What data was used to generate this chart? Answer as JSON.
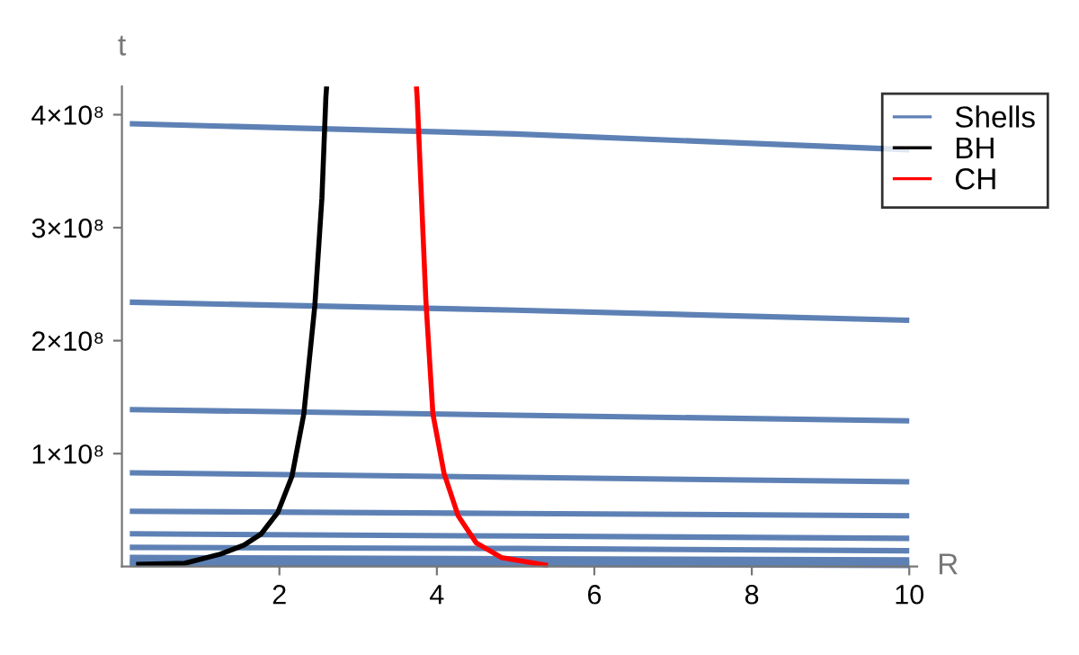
{
  "chart_data": {
    "type": "line",
    "xlabel": "R",
    "ylabel": "t",
    "xlim": [
      0,
      10.1
    ],
    "ylim": [
      0,
      425000000
    ],
    "xticks": [
      2,
      4,
      6,
      8,
      10
    ],
    "yticks": [
      {
        "value": 100000000,
        "label": "1×10⁸"
      },
      {
        "value": 200000000,
        "label": "2×10⁸"
      },
      {
        "value": 300000000,
        "label": "3×10⁸"
      },
      {
        "value": 400000000,
        "label": "4×10⁸"
      }
    ],
    "grid": false,
    "legend": "top right",
    "marker": "none",
    "line_style": "solid",
    "series": [
      {
        "name": "Shells",
        "color": "#5e81b5",
        "x": [
          0.1,
          5,
          10
        ],
        "values": [
          392000000,
          383000000,
          369000000
        ]
      },
      {
        "color": "#5e81b5",
        "x": [
          0.1,
          5,
          10
        ],
        "values": [
          234000000,
          227000000,
          218000000
        ]
      },
      {
        "color": "#5e81b5",
        "x": [
          0.1,
          5,
          10
        ],
        "values": [
          139000000,
          134000000,
          129000000
        ]
      },
      {
        "color": "#5e81b5",
        "x": [
          0.1,
          5,
          10
        ],
        "values": [
          83000000,
          79000000,
          75000000
        ]
      },
      {
        "color": "#5e81b5",
        "x": [
          0.1,
          5,
          10
        ],
        "values": [
          49000000,
          47000000,
          45000000
        ]
      },
      {
        "color": "#5e81b5",
        "x": [
          0.1,
          5,
          10
        ],
        "values": [
          29000000,
          27000000,
          25000000
        ]
      },
      {
        "color": "#5e81b5",
        "x": [
          0.1,
          5,
          10
        ],
        "values": [
          17000000,
          16000000,
          14000000
        ]
      },
      {
        "color": "#5e81b5",
        "x": [
          0.1,
          5,
          10
        ],
        "values": [
          8000000,
          7000000,
          6000000
        ]
      },
      {
        "color": "#5e81b5",
        "x": [
          0.1,
          5,
          10
        ],
        "values": [
          4000000,
          4000000,
          3000000
        ]
      },
      {
        "color": "#5e81b5",
        "x": [
          0.1,
          5,
          10
        ],
        "values": [
          2000000,
          2000000,
          1000000
        ]
      },
      {
        "name": "BH",
        "color": "#000000",
        "x": [
          0.18,
          0.8,
          1.25,
          1.55,
          1.77,
          1.98,
          2.16,
          2.31,
          2.45,
          2.54,
          2.59,
          2.6
        ],
        "values": [
          2000000,
          3000000,
          11000000,
          19000000,
          29000000,
          48000000,
          80000000,
          135000000,
          231000000,
          326000000,
          415000000,
          425000000
        ]
      },
      {
        "name": "CH",
        "color": "#ff0000",
        "x": [
          3.74,
          3.75,
          3.86,
          3.95,
          4.09,
          4.27,
          4.5,
          4.82,
          5.41
        ],
        "values": [
          425000000,
          415000000,
          236000000,
          135000000,
          83000000,
          45000000,
          21000000,
          8000000,
          1000000
        ]
      }
    ]
  }
}
